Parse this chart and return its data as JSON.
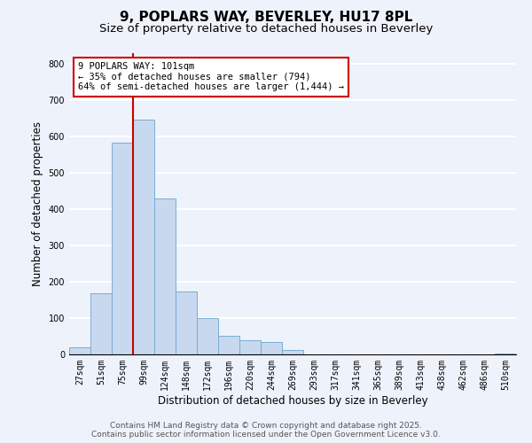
{
  "title": "9, POPLARS WAY, BEVERLEY, HU17 8PL",
  "subtitle": "Size of property relative to detached houses in Beverley",
  "xlabel": "Distribution of detached houses by size in Beverley",
  "ylabel": "Number of detached properties",
  "categories": [
    "27sqm",
    "51sqm",
    "75sqm",
    "99sqm",
    "124sqm",
    "148sqm",
    "172sqm",
    "196sqm",
    "220sqm",
    "244sqm",
    "269sqm",
    "293sqm",
    "317sqm",
    "341sqm",
    "365sqm",
    "389sqm",
    "413sqm",
    "438sqm",
    "462sqm",
    "486sqm",
    "510sqm"
  ],
  "values": [
    20,
    168,
    583,
    648,
    430,
    173,
    101,
    51,
    39,
    33,
    12,
    0,
    0,
    0,
    0,
    0,
    0,
    0,
    0,
    0,
    3
  ],
  "bar_color": "#c8d8ee",
  "bar_edge_color": "#7aaed4",
  "vline_color": "#cc0000",
  "annotation_text": "9 POPLARS WAY: 101sqm\n← 35% of detached houses are smaller (794)\n64% of semi-detached houses are larger (1,444) →",
  "annotation_box_color": "#ffffff",
  "annotation_box_edge": "#cc0000",
  "ylim": [
    0,
    830
  ],
  "yticks": [
    0,
    100,
    200,
    300,
    400,
    500,
    600,
    700,
    800
  ],
  "footer_line1": "Contains HM Land Registry data © Crown copyright and database right 2025.",
  "footer_line2": "Contains public sector information licensed under the Open Government Licence v3.0.",
  "bg_color": "#eef2fa",
  "grid_color": "#ffffff",
  "title_fontsize": 11,
  "subtitle_fontsize": 9.5,
  "axis_label_fontsize": 8.5,
  "tick_fontsize": 7,
  "annotation_fontsize": 7.5,
  "footer_fontsize": 6.5
}
